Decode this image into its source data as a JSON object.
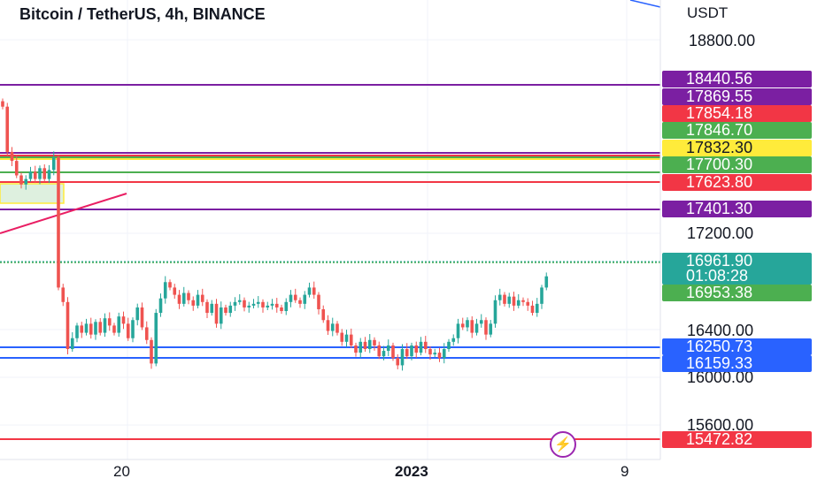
{
  "header": {
    "title": "Bitcoin / TetherUS, 4h, BINANCE"
  },
  "price_axis": {
    "currency": "USDT",
    "labels": [
      "18800.00",
      "17200.00",
      "16400.00",
      "16000.00",
      "15600.00"
    ]
  },
  "price_badges": [
    {
      "label": "18440.56",
      "color": "#7b1fa2"
    },
    {
      "label": "17869.55",
      "color": "#7b1fa2"
    },
    {
      "label": "17854.18",
      "color": "#f23645"
    },
    {
      "label": "17846.70",
      "color": "#4caf50"
    },
    {
      "label": "17832.30",
      "color": "#ffeb3b"
    },
    {
      "label": "17700.30",
      "color": "#4caf50"
    },
    {
      "label": "17623.80",
      "color": "#f23645"
    },
    {
      "label": "17401.30",
      "color": "#7b1fa2"
    },
    {
      "label": "16953.38",
      "color": "#4caf50"
    },
    {
      "label": "16250.73",
      "color": "#2962ff"
    },
    {
      "label": "16159.33",
      "color": "#2962ff"
    },
    {
      "label": "15472.82",
      "color": "#f23645"
    }
  ],
  "last_price": {
    "price": "16961.90",
    "countdown": "01:08:28",
    "color": "#26a69a"
  },
  "time_axis": {
    "labels": [
      "20",
      "2023",
      "9"
    ]
  },
  "icons": {
    "alert": "lightning-icon"
  },
  "chart_data": {
    "type": "candlestick",
    "title": "Bitcoin / TetherUS, 4h, BINANCE",
    "y_unit": "USDT",
    "y_ticks": [
      18800.0,
      17200.0,
      16400.0,
      16000.0,
      15600.0
    ],
    "x_ticks": [
      "20",
      "2023",
      "9"
    ],
    "horizontal_levels": [
      18440.56,
      17869.55,
      17854.18,
      17846.7,
      17832.3,
      17700.3,
      17623.8,
      17401.3,
      16953.38,
      16250.73,
      16159.33,
      15472.82
    ],
    "last_price": 16961.9,
    "grid": true
  }
}
